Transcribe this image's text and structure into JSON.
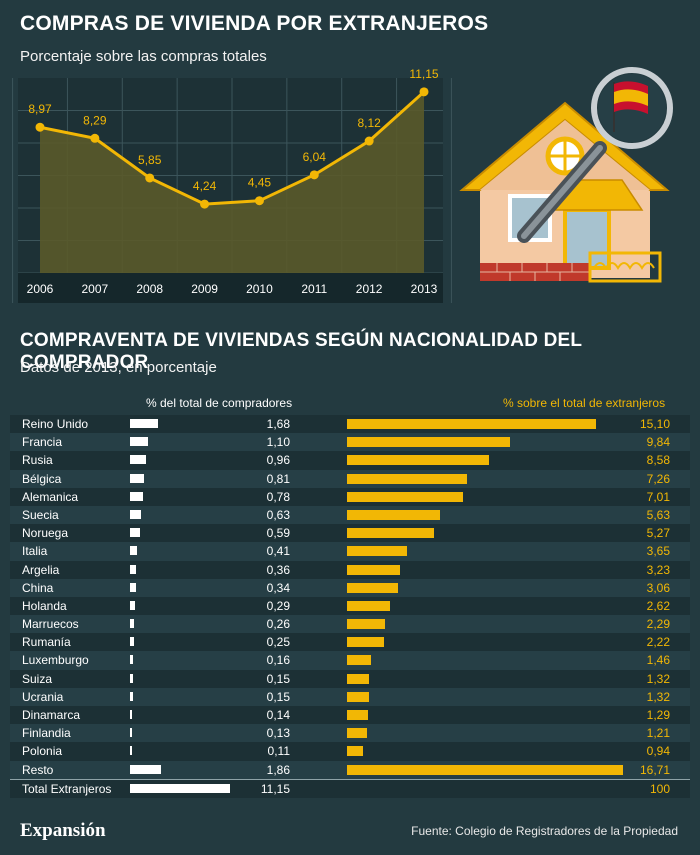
{
  "header": {
    "title": "COMPRAS DE VIVIENDA POR EXTRANJEROS",
    "subtitle": "Porcentaje sobre las compras totales"
  },
  "section2": {
    "title": "COMPRAVENTA DE VIVIENDAS SEGÚN NACIONALIDAD DEL COMPRADOR",
    "subtitle": "Datos de 2013, en porcentaje",
    "col1_header": "% del total de compradores",
    "col2_header": "% sobre el total de extranjeros"
  },
  "footer": {
    "brand": "Expansión",
    "source": "Fuente: Colegio de Registradores de la Propiedad"
  },
  "colors": {
    "accent": "#f2b705",
    "background": "#233a40",
    "bar_white": "#ffffff"
  },
  "icons": [
    "house-icon",
    "magnifying-glass-icon",
    "spain-flag-icon"
  ],
  "chart_data": [
    {
      "type": "area",
      "title": "COMPRAS DE VIVIENDA POR EXTRANJEROS",
      "subtitle": "Porcentaje sobre las compras totales",
      "categories": [
        "2006",
        "2007",
        "2008",
        "2009",
        "2010",
        "2011",
        "2012",
        "2013"
      ],
      "values": [
        8.97,
        8.29,
        5.85,
        4.24,
        4.45,
        6.04,
        8.12,
        11.15
      ],
      "labels": [
        "8,97",
        "8,29",
        "5,85",
        "4,24",
        "4,45",
        "6,04",
        "8,12",
        "11,15"
      ],
      "ylim": [
        0,
        12
      ],
      "grid": true
    },
    {
      "type": "bar",
      "title": "COMPRAVENTA DE VIVIENDAS SEGÚN NACIONALIDAD DEL COMPRADOR",
      "subtitle": "Datos de 2013, en porcentaje",
      "columns": [
        "% del total de compradores",
        "% sobre el total de extranjeros"
      ],
      "rows": [
        {
          "name": "Reino Unido",
          "pct_total": 1.68,
          "pct_total_label": "1,68",
          "pct_ext": 15.1,
          "pct_ext_label": "15,10"
        },
        {
          "name": "Francia",
          "pct_total": 1.1,
          "pct_total_label": "1,10",
          "pct_ext": 9.84,
          "pct_ext_label": "9,84"
        },
        {
          "name": "Rusia",
          "pct_total": 0.96,
          "pct_total_label": "0,96",
          "pct_ext": 8.58,
          "pct_ext_label": "8,58"
        },
        {
          "name": "Bélgica",
          "pct_total": 0.81,
          "pct_total_label": "0,81",
          "pct_ext": 7.26,
          "pct_ext_label": "7,26"
        },
        {
          "name": "Alemanica",
          "pct_total": 0.78,
          "pct_total_label": "0,78",
          "pct_ext": 7.01,
          "pct_ext_label": "7,01"
        },
        {
          "name": "Suecia",
          "pct_total": 0.63,
          "pct_total_label": "0,63",
          "pct_ext": 5.63,
          "pct_ext_label": "5,63"
        },
        {
          "name": "Noruega",
          "pct_total": 0.59,
          "pct_total_label": "0,59",
          "pct_ext": 5.27,
          "pct_ext_label": "5,27"
        },
        {
          "name": "Italia",
          "pct_total": 0.41,
          "pct_total_label": "0,41",
          "pct_ext": 3.65,
          "pct_ext_label": "3,65"
        },
        {
          "name": "Argelia",
          "pct_total": 0.36,
          "pct_total_label": "0,36",
          "pct_ext": 3.23,
          "pct_ext_label": "3,23"
        },
        {
          "name": "China",
          "pct_total": 0.34,
          "pct_total_label": "0,34",
          "pct_ext": 3.06,
          "pct_ext_label": "3,06"
        },
        {
          "name": "Holanda",
          "pct_total": 0.29,
          "pct_total_label": "0,29",
          "pct_ext": 2.62,
          "pct_ext_label": "2,62"
        },
        {
          "name": "Marruecos",
          "pct_total": 0.26,
          "pct_total_label": "0,26",
          "pct_ext": 2.29,
          "pct_ext_label": "2,29"
        },
        {
          "name": "Rumanía",
          "pct_total": 0.25,
          "pct_total_label": "0,25",
          "pct_ext": 2.22,
          "pct_ext_label": "2,22"
        },
        {
          "name": "Luxemburgo",
          "pct_total": 0.16,
          "pct_total_label": "0,16",
          "pct_ext": 1.46,
          "pct_ext_label": "1,46"
        },
        {
          "name": "Suiza",
          "pct_total": 0.15,
          "pct_total_label": "0,15",
          "pct_ext": 1.32,
          "pct_ext_label": "1,32"
        },
        {
          "name": "Ucrania",
          "pct_total": 0.15,
          "pct_total_label": "0,15",
          "pct_ext": 1.32,
          "pct_ext_label": "1,32"
        },
        {
          "name": "Dinamarca",
          "pct_total": 0.14,
          "pct_total_label": "0,14",
          "pct_ext": 1.29,
          "pct_ext_label": "1,29"
        },
        {
          "name": "Finlandia",
          "pct_total": 0.13,
          "pct_total_label": "0,13",
          "pct_ext": 1.21,
          "pct_ext_label": "1,21"
        },
        {
          "name": "Polonia",
          "pct_total": 0.11,
          "pct_total_label": "0,11",
          "pct_ext": 0.94,
          "pct_ext_label": "0,94"
        },
        {
          "name": "Resto",
          "pct_total": 1.86,
          "pct_total_label": "1,86",
          "pct_ext": 16.71,
          "pct_ext_label": "16,71"
        }
      ],
      "total": {
        "name": "Total Extranjeros",
        "pct_total": 11.15,
        "pct_total_label": "11,15",
        "pct_ext": 100,
        "pct_ext_label": "100"
      }
    }
  ]
}
